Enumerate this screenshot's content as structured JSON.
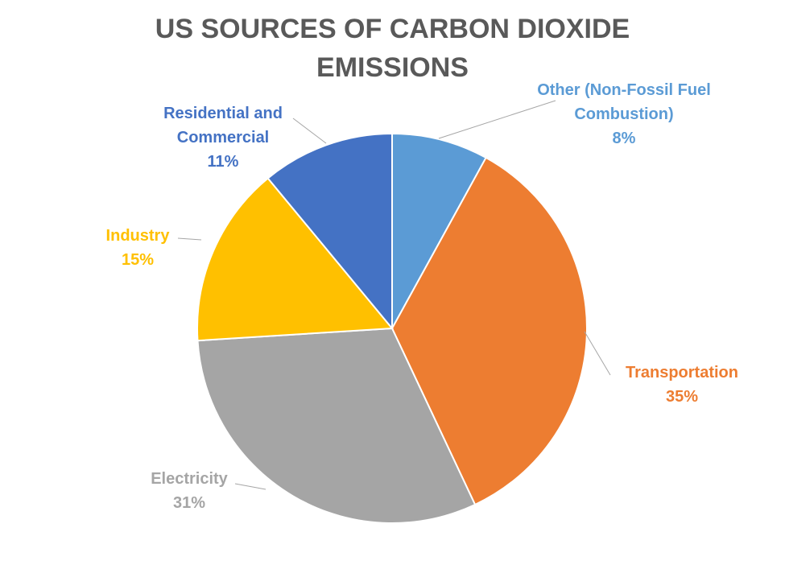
{
  "chart_data": {
    "type": "pie",
    "title_lines": [
      "US SOURCES OF CARBON DIOXIDE",
      "EMISSIONS"
    ],
    "slices": [
      {
        "label_lines": [
          "Other (Non-Fossil Fuel",
          "Combustion)"
        ],
        "percent_label": "8%",
        "value": 8,
        "color": "#5b9bd5"
      },
      {
        "label_lines": [
          "Transportation"
        ],
        "percent_label": "35%",
        "value": 35,
        "color": "#ed7d31"
      },
      {
        "label_lines": [
          "Electricity"
        ],
        "percent_label": "31%",
        "value": 31,
        "color": "#a5a5a5"
      },
      {
        "label_lines": [
          "Industry"
        ],
        "percent_label": "15%",
        "value": 15,
        "color": "#ffc000"
      },
      {
        "label_lines": [
          "Residential and",
          "Commercial"
        ],
        "percent_label": "11%",
        "value": 11,
        "color": "#4472c4"
      }
    ]
  }
}
